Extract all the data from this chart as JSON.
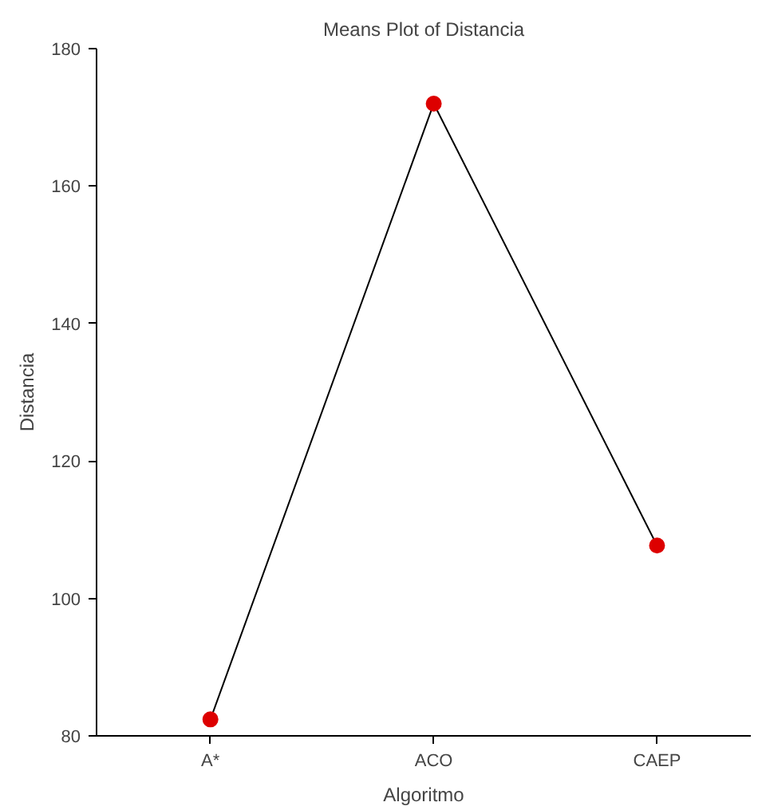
{
  "chart_data": {
    "type": "line",
    "title": "Means Plot of Distancia",
    "xlabel": "Algoritmo",
    "ylabel": "Distancia",
    "categories": [
      "A*",
      "ACO",
      "CAEP"
    ],
    "series": [
      {
        "color": "#000000",
        "colors": [
          "#dd0000",
          "#dd0000",
          "#dd0000"
        ],
        "values": [
          82.4,
          172.0,
          107.7
        ]
      }
    ],
    "marker": "circle",
    "ylim": [
      80,
      180
    ],
    "yticks": [
      80,
      100,
      120,
      140,
      160,
      180
    ]
  }
}
